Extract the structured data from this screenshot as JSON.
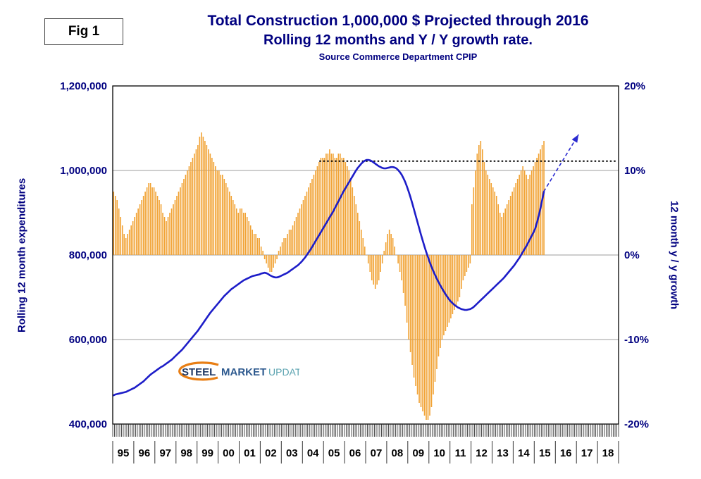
{
  "figure": {
    "label": "Fig 1"
  },
  "logo": {
    "steel": "STEEL",
    "market": "MARKET",
    "update": "UPDATE"
  },
  "chart_data": {
    "type": "bar+line combo",
    "title": "Total Construction 1,000,000 $ Projected through 2016",
    "subtitle": "Rolling 12 months and Y / Y growth rate.",
    "source": "Source Commerce Department CPIP",
    "legend_position": "none",
    "grid": "horizontal",
    "left_axis": {
      "title": "Rolling 12 month expenditures",
      "min": 400000,
      "max": 1200000,
      "ticks": [
        {
          "label": "1,200,000",
          "value": 1200000
        },
        {
          "label": "1,000,000",
          "value": 1000000
        },
        {
          "label": "800,000",
          "value": 800000
        },
        {
          "label": "600,000",
          "value": 600000
        },
        {
          "label": "400,000",
          "value": 400000
        }
      ],
      "gridlines": [
        1000000,
        800000,
        600000
      ]
    },
    "right_axis": {
      "title": "12 month y / y growth",
      "min": -20,
      "max": 20,
      "ticks": [
        {
          "label": "20%",
          "value": 20
        },
        {
          "label": "10%",
          "value": 10
        },
        {
          "label": "0%",
          "value": 0
        },
        {
          "label": "-10%",
          "value": -10
        },
        {
          "label": "-20%",
          "value": -20
        }
      ]
    },
    "x_axis": {
      "start_year": 1995,
      "year_labels": [
        "95",
        "96",
        "97",
        "98",
        "99",
        "00",
        "01",
        "02",
        "03",
        "04",
        "05",
        "06",
        "07",
        "08",
        "09",
        "10",
        "11",
        "12",
        "13",
        "14",
        "15",
        "16",
        "17",
        "18"
      ]
    },
    "bars": {
      "name": "Year / Year growth rate",
      "axis": "right",
      "unit": "percent",
      "start": "1995-01",
      "color": "#F1A233",
      "values": [
        7.5,
        7,
        6.5,
        5.5,
        4.5,
        3.5,
        2.5,
        2,
        2.5,
        3,
        3.5,
        4,
        4.5,
        5,
        5.5,
        6,
        6.5,
        7,
        7.5,
        8,
        8.5,
        8.5,
        8,
        8,
        7.5,
        7,
        6.5,
        6,
        5,
        4.5,
        4,
        4.5,
        5,
        5.5,
        6,
        6.5,
        7,
        7.5,
        8,
        8.5,
        9,
        9.5,
        10,
        10.5,
        11,
        11.5,
        12,
        12.5,
        13,
        14,
        14.5,
        14,
        13.5,
        13,
        12.5,
        12,
        11.5,
        11,
        10.5,
        10,
        10,
        9.5,
        9.5,
        9,
        8.5,
        8,
        7.5,
        7,
        6.5,
        6,
        5.5,
        5,
        5.5,
        5.5,
        5,
        5,
        4.5,
        4,
        3.5,
        3,
        2.5,
        2.5,
        2,
        2,
        1,
        0.5,
        -0.5,
        -1,
        -1.5,
        -2,
        -2,
        -1.5,
        -1,
        -0.5,
        0.5,
        1,
        1.5,
        2,
        2,
        2.5,
        3,
        3,
        3.5,
        4,
        4.5,
        5,
        5.5,
        6,
        6.5,
        7,
        7.5,
        8,
        8.5,
        9,
        9.5,
        10,
        10.5,
        11,
        11.5,
        11.5,
        11.5,
        12,
        12,
        12.5,
        12,
        12,
        11.5,
        11.5,
        12,
        12,
        11.5,
        11.5,
        11,
        10.5,
        10,
        9,
        8,
        7,
        6,
        5,
        4,
        3,
        2,
        1,
        0,
        -1,
        -2,
        -3,
        -3.5,
        -4,
        -3.5,
        -3,
        -2,
        -1,
        0.5,
        1.5,
        2.5,
        3,
        2.5,
        2,
        1,
        0,
        -1,
        -2,
        -3,
        -4.5,
        -6,
        -8,
        -10,
        -11.5,
        -13,
        -14.5,
        -15.5,
        -16.5,
        -17.5,
        -18,
        -18.5,
        -19,
        -19.5,
        -19.5,
        -19,
        -18,
        -16.5,
        -15,
        -13.5,
        -12,
        -11,
        -10,
        -9.5,
        -9,
        -8.5,
        -8,
        -7.5,
        -7,
        -6.5,
        -6,
        -5.5,
        -5,
        -4,
        -3,
        -2.5,
        -2,
        -1.5,
        -1,
        6,
        8,
        10,
        12,
        13,
        13.5,
        12.5,
        11,
        10,
        9.5,
        9,
        8.5,
        8,
        7.5,
        7,
        6,
        5,
        4.5,
        5,
        5.5,
        6,
        6.5,
        7,
        7.5,
        8,
        8.5,
        9,
        9.5,
        10,
        10.5,
        10,
        9.5,
        9,
        9.5,
        10,
        10.5,
        11,
        11.5,
        12,
        12.5,
        13,
        13.5
      ]
    },
    "line": {
      "name": "Rolling 12 month expenditures",
      "axis": "left",
      "unit_multiplier": 1000,
      "start": "1995-01",
      "color": "#1D1DC8",
      "values": [
        468,
        470,
        471,
        472,
        473,
        474,
        475,
        476,
        478,
        480,
        482,
        484,
        486,
        489,
        492,
        495,
        498,
        501,
        505,
        509,
        513,
        517,
        520,
        523,
        526,
        529,
        532,
        535,
        537,
        540,
        543,
        546,
        549,
        552,
        556,
        560,
        564,
        568,
        572,
        576,
        581,
        586,
        591,
        596,
        601,
        606,
        611,
        616,
        621,
        627,
        633,
        639,
        645,
        651,
        657,
        663,
        668,
        673,
        678,
        683,
        688,
        693,
        698,
        703,
        707,
        711,
        715,
        719,
        722,
        725,
        728,
        731,
        734,
        737,
        740,
        742,
        744,
        746,
        748,
        750,
        751,
        752,
        753,
        754,
        756,
        757,
        758,
        757,
        755,
        752,
        750,
        748,
        747,
        747,
        748,
        750,
        752,
        754,
        756,
        758,
        761,
        764,
        767,
        770,
        773,
        776,
        780,
        784,
        789,
        794,
        800,
        806,
        812,
        819,
        826,
        833,
        840,
        847,
        854,
        861,
        868,
        875,
        882,
        889,
        896,
        903,
        911,
        919,
        927,
        935,
        943,
        951,
        958,
        965,
        972,
        979,
        986,
        993,
        1000,
        1006,
        1011,
        1016,
        1020,
        1023,
        1025,
        1025,
        1024,
        1022,
        1019,
        1016,
        1013,
        1010,
        1008,
        1006,
        1005,
        1005,
        1006,
        1007,
        1008,
        1008,
        1007,
        1005,
        1001,
        996,
        990,
        982,
        973,
        962,
        950,
        937,
        923,
        908,
        893,
        878,
        863,
        848,
        834,
        820,
        807,
        795,
        783,
        772,
        762,
        753,
        744,
        736,
        728,
        721,
        714,
        707,
        701,
        695,
        690,
        686,
        682,
        679,
        676,
        674,
        672,
        671,
        670,
        670,
        671,
        672,
        674,
        677,
        681,
        685,
        689,
        693,
        697,
        701,
        705,
        709,
        713,
        717,
        721,
        725,
        729,
        733,
        737,
        741,
        745,
        750,
        755,
        760,
        765,
        770,
        775,
        781,
        787,
        793,
        800,
        807,
        814,
        821,
        829,
        837,
        845,
        853,
        862,
        876,
        892,
        910,
        930,
        950
      ]
    },
    "reference_line": {
      "style": "dotted",
      "color": "#000000",
      "value": 1022000,
      "start_year": 2004.8,
      "end_year": 2018.95
    },
    "projection_arrow": {
      "style": "dashed",
      "color": "#2A2AD0",
      "from_year": 2015.45,
      "from_value": 950000,
      "to_year": 2017.1,
      "to_value": 1085000
    }
  }
}
